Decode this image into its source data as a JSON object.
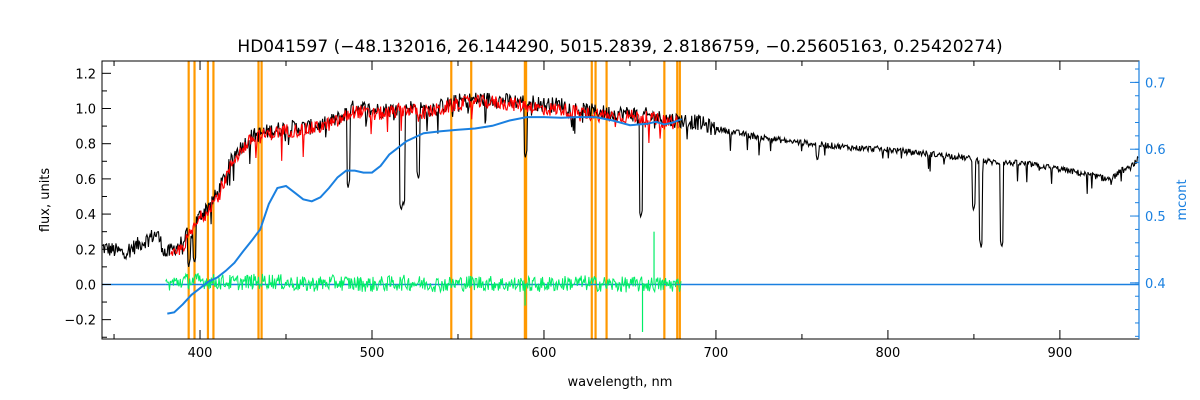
{
  "chart_data": {
    "type": "line",
    "title": "HD041597   (−48.132016, 26.144290, 5015.2839, 2.8186759, −0.25605163, 0.25420274)",
    "xlabel": "wavelength, nm",
    "ylabel": "flux, units",
    "y2label": "mcont",
    "xlim": [
      343,
      946
    ],
    "ylim": [
      -0.31,
      1.27
    ],
    "y2lim": [
      0.316,
      0.732
    ],
    "x_ticks": [
      400,
      500,
      600,
      700,
      800,
      900
    ],
    "x_tick_labels": [
      "400",
      "500",
      "600",
      "700",
      "800",
      "900"
    ],
    "y_ticks": [
      -0.2,
      0.0,
      0.2,
      0.4,
      0.6,
      0.8,
      1.0,
      1.2
    ],
    "y_tick_labels": [
      "−0.2",
      "0.0",
      "0.2",
      "0.4",
      "0.6",
      "0.8",
      "1.0",
      "1.2"
    ],
    "y2_ticks": [
      0.4,
      0.5,
      0.6,
      0.7
    ],
    "y2_tick_labels": [
      "0.4",
      "0.5",
      "0.6",
      "0.7"
    ],
    "grid": false,
    "colors": {
      "observed": "#000000",
      "model": "#ff0000",
      "residual": "#00ee66",
      "continuum": "#1a80e0",
      "mask": "#ff9900",
      "axis": "#000000"
    },
    "mask_lines": [
      393.4,
      396.8,
      404.6,
      407.8,
      434.0,
      435.8,
      546.1,
      557.7,
      588.9,
      589.6,
      627.8,
      630.0,
      636.4,
      670.0,
      677.5,
      679.0
    ],
    "series": [
      {
        "key": "observed",
        "x": [
          343,
          355,
          365,
          375,
          380,
          390,
          400,
          410,
          420,
          430,
          440,
          450,
          460,
          470,
          480,
          490,
          500,
          510,
          520,
          530,
          540,
          550,
          560,
          570,
          580,
          590,
          600,
          610,
          620,
          630,
          640,
          650,
          660,
          670,
          680,
          690,
          700,
          720,
          740,
          760,
          780,
          800,
          820,
          840,
          860,
          880,
          900,
          920,
          930,
          935,
          940,
          946
        ],
        "y": [
          0.22,
          0.19,
          0.24,
          0.3,
          0.18,
          0.25,
          0.4,
          0.52,
          0.75,
          0.85,
          0.88,
          0.9,
          0.9,
          0.91,
          0.95,
          1.02,
          1.0,
          1.0,
          1.02,
          1.0,
          1.02,
          1.05,
          1.06,
          1.06,
          1.05,
          1.05,
          1.03,
          1.03,
          1.0,
          0.99,
          0.98,
          0.98,
          0.97,
          0.95,
          0.94,
          0.93,
          0.89,
          0.85,
          0.82,
          0.8,
          0.78,
          0.77,
          0.75,
          0.73,
          0.7,
          0.69,
          0.66,
          0.62,
          0.6,
          0.65,
          0.66,
          0.72
        ],
        "absorption": [
          [
            393.4,
            0.1
          ],
          [
            396.8,
            0.12
          ],
          [
            486.1,
            0.55
          ],
          [
            517.0,
            0.42
          ],
          [
            518.4,
            0.45
          ],
          [
            527.0,
            0.6
          ],
          [
            589.2,
            0.72
          ],
          [
            656.3,
            0.38
          ],
          [
            759.0,
            0.7
          ],
          [
            849.8,
            0.42
          ],
          [
            854.2,
            0.21
          ],
          [
            866.2,
            0.21
          ]
        ]
      },
      {
        "key": "model",
        "x": [
          383,
          390,
          400,
          410,
          420,
          430,
          440,
          450,
          460,
          470,
          480,
          490,
          500,
          510,
          520,
          530,
          540,
          550,
          560,
          570,
          580,
          590,
          600,
          610,
          620,
          630,
          640,
          650,
          660,
          670,
          678
        ],
        "y": [
          0.15,
          0.22,
          0.38,
          0.5,
          0.72,
          0.83,
          0.86,
          0.88,
          0.88,
          0.9,
          0.93,
          0.99,
          0.97,
          0.98,
          1.0,
          0.98,
          1.0,
          1.03,
          1.04,
          1.04,
          1.03,
          1.02,
          1.0,
          1.0,
          0.98,
          0.97,
          0.96,
          0.96,
          0.95,
          0.93,
          0.93
        ]
      },
      {
        "key": "residual",
        "x": [
          380,
          390,
          400,
          420,
          440,
          460,
          480,
          500,
          520,
          540,
          560,
          580,
          600,
          620,
          640,
          660,
          680
        ],
        "y": [
          0.0,
          0.02,
          0.02,
          0.01,
          0.02,
          0.0,
          0.01,
          0.0,
          0.01,
          0.0,
          0.01,
          0.0,
          0.0,
          0.01,
          0.0,
          0.0,
          0.0
        ],
        "spikes": [
          [
            657.3,
            -0.27
          ],
          [
            664.0,
            0.3
          ],
          [
            589.0,
            -0.12
          ]
        ]
      },
      {
        "key": "continuum",
        "axis": "right",
        "x": [
          381,
          385,
          390,
          395,
          400,
          405,
          410,
          415,
          420,
          425,
          430,
          435,
          440,
          445,
          450,
          455,
          460,
          465,
          470,
          475,
          480,
          485,
          490,
          495,
          500,
          505,
          510,
          515,
          520,
          530,
          540,
          550,
          560,
          570,
          580,
          590,
          600,
          610,
          620,
          630,
          640,
          650,
          660,
          665,
          670,
          675,
          680
        ],
        "y": [
          0.354,
          0.356,
          0.368,
          0.382,
          0.392,
          0.402,
          0.408,
          0.418,
          0.43,
          0.447,
          0.463,
          0.48,
          0.518,
          0.542,
          0.545,
          0.535,
          0.525,
          0.522,
          0.528,
          0.542,
          0.558,
          0.568,
          0.568,
          0.565,
          0.565,
          0.575,
          0.592,
          0.602,
          0.612,
          0.624,
          0.627,
          0.629,
          0.631,
          0.635,
          0.643,
          0.648,
          0.648,
          0.647,
          0.648,
          0.648,
          0.643,
          0.636,
          0.638,
          0.641,
          0.637,
          0.64,
          0.645
        ]
      },
      {
        "key": "zero-line",
        "x": [
          380,
          946
        ],
        "y": [
          0.0,
          0.0
        ]
      }
    ]
  }
}
